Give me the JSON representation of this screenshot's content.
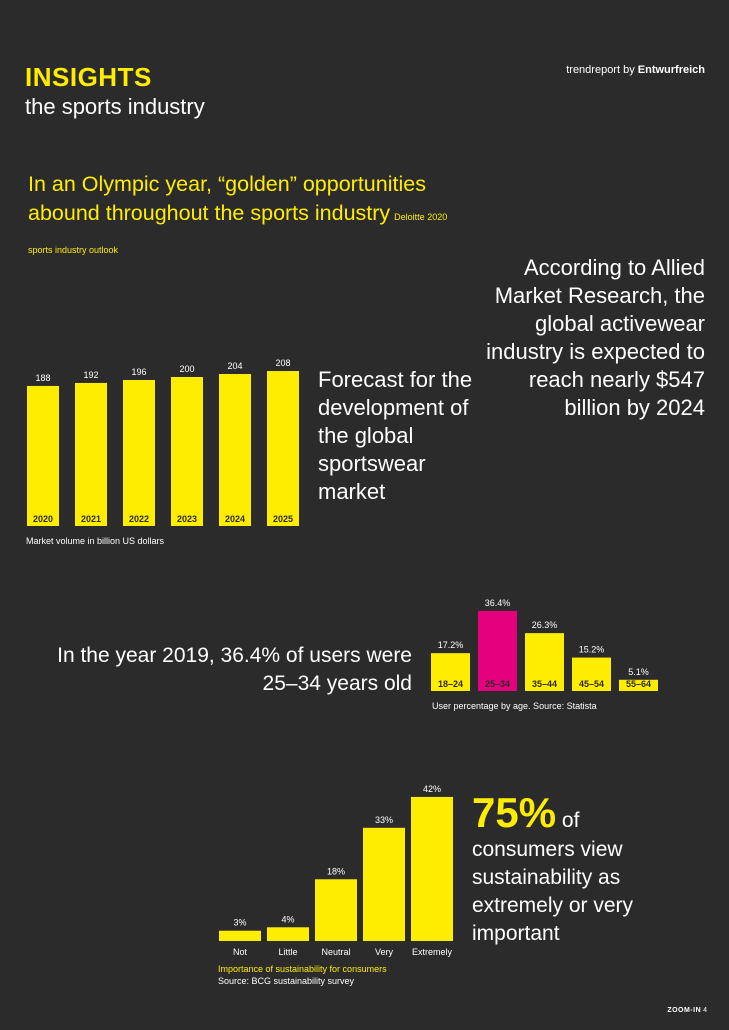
{
  "header": {
    "title": "INSIGHTS",
    "subtitle": "the sports industry",
    "brand_prefix": "trendreport by ",
    "brand_name": "Entwurfreich"
  },
  "headline": {
    "text": "In an Olympic year, “golden” opportunities abound throughout the sports industry",
    "source": "Deloitte 2020 sports industry outlook"
  },
  "allied_text": "According to Allied Market Research, the global activewear industry is expected to reach nearly $547 billion by 2024",
  "forecast_text": "Forecast for the development of the global sportswear market",
  "users_text_line1": "In the year 2019, 36.4% of users were",
  "users_text_line2": "25–34 years old",
  "sustain": {
    "big": "75%",
    "of": "of",
    "rest": "consumers view sustainability as extremely or very important",
    "caption1": "Importance of sustainability for consumers",
    "caption2": "Source: BCG sustainability survey"
  },
  "footer": {
    "label": "ZOOM-IN",
    "page": "4"
  },
  "colors": {
    "accent": "#ffed00",
    "highlight": "#e5007d",
    "background": "#2b2b2b"
  },
  "chart_data": [
    {
      "type": "bar",
      "categories": [
        "2020",
        "2021",
        "2022",
        "2023",
        "2024",
        "2025"
      ],
      "values": [
        188,
        192,
        196,
        200,
        204,
        208
      ],
      "data_labels": [
        "188",
        "192",
        "196",
        "200",
        "204",
        "208"
      ],
      "caption": "Market volume in billion US dollars",
      "title": "",
      "xlabel": "",
      "ylabel": "",
      "grid": false
    },
    {
      "type": "bar",
      "categories": [
        "18–24",
        "25–34",
        "35–44",
        "45–54",
        "55–64"
      ],
      "values": [
        17.2,
        36.4,
        26.3,
        15.2,
        5.1
      ],
      "data_labels": [
        "17.2%",
        "36.4%",
        "26.3%",
        "15.2%",
        "5.1%"
      ],
      "highlight_index": 1,
      "caption": "User percentage by age. Source: Statista",
      "title": "",
      "xlabel": "",
      "ylabel": "",
      "grid": false
    },
    {
      "type": "bar",
      "categories": [
        "Not",
        "Little",
        "Neutral",
        "Very",
        "Extremely"
      ],
      "values": [
        3,
        4,
        18,
        33,
        42
      ],
      "data_labels": [
        "3%",
        "4%",
        "18%",
        "33%",
        "42%"
      ],
      "title": "",
      "xlabel": "",
      "ylabel": "",
      "grid": false
    }
  ]
}
